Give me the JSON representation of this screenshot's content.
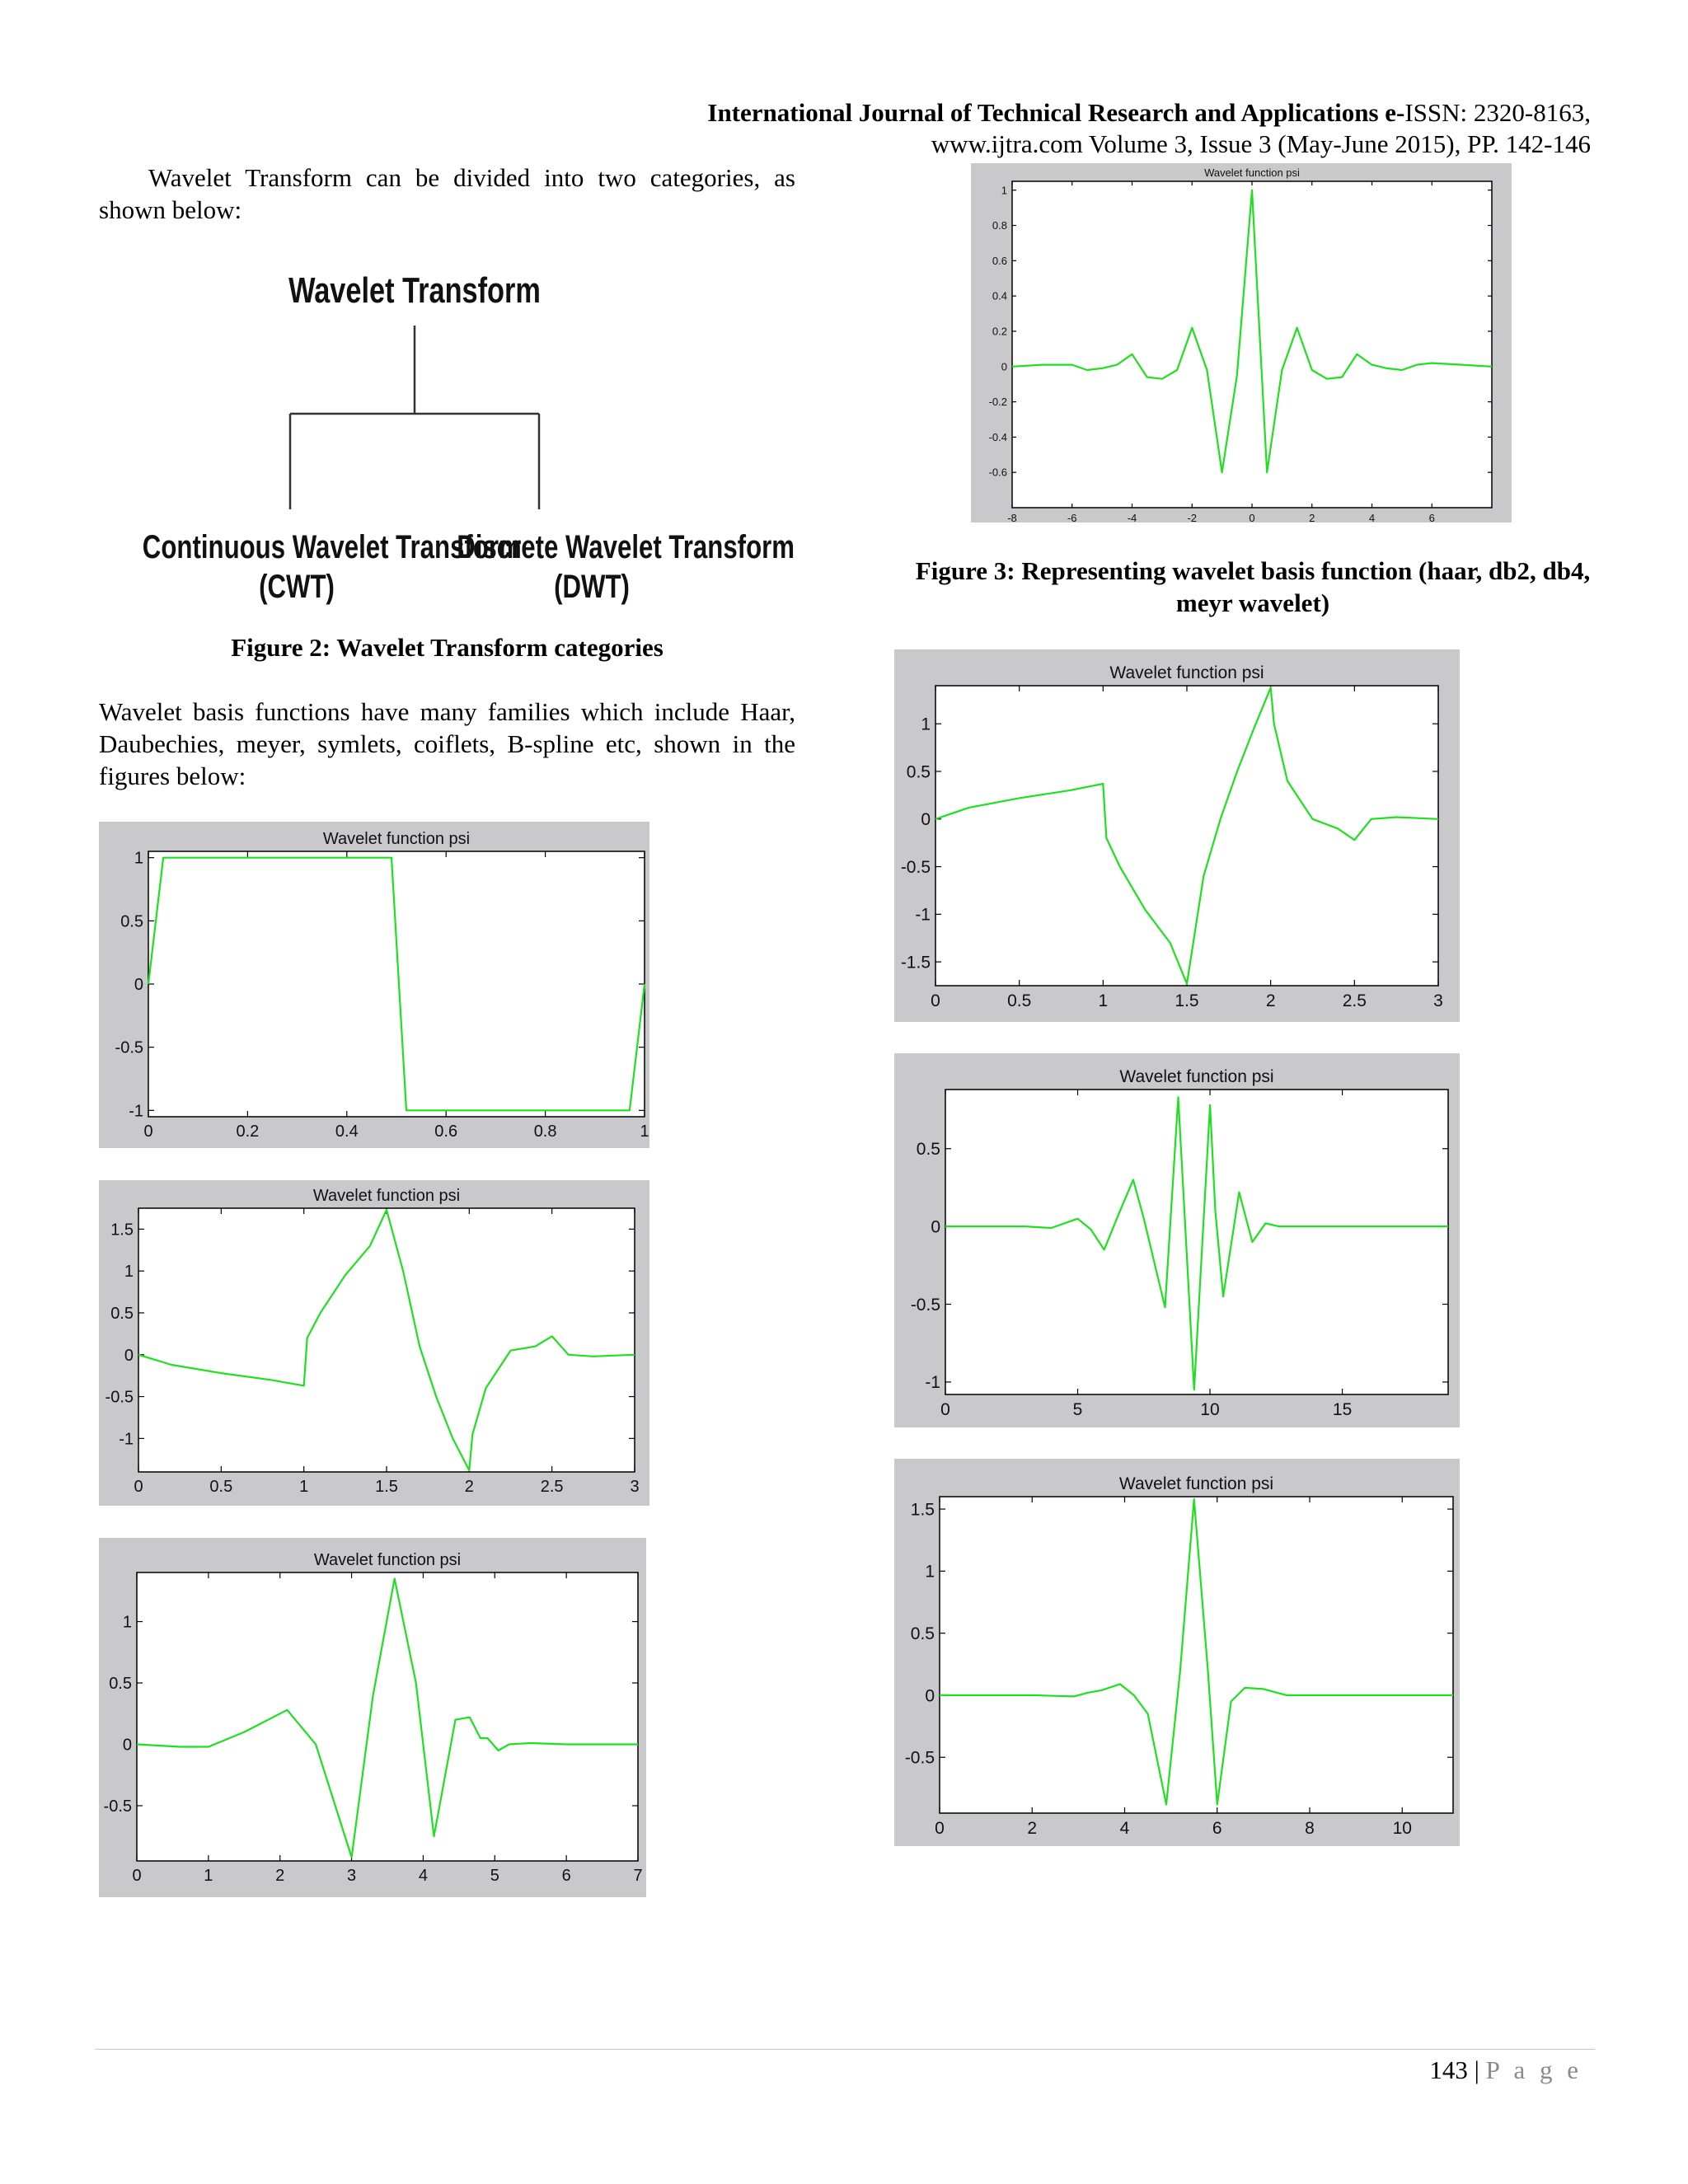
{
  "header": {
    "journal_bold": "International Journal of Technical Research and Applications e-",
    "issn": "ISSN: 2320-8163,",
    "line2": "www.ijtra.com Volume 3, Issue 3 (May-June 2015), PP. 142-146"
  },
  "para1": "Wavelet Transform can be divided into two categories, as shown below:",
  "diagram": {
    "root": "Wavelet Transform",
    "left_line1": "Continuous Wavelet Transform",
    "left_line2": "(CWT)",
    "right_line1": "Discrete Wavelet Transform",
    "right_line2": "(DWT)"
  },
  "fig2_caption": "Figure 2: Wavelet Transform categories",
  "para2": "Wavelet basis functions have many families which include Haar, Daubechies, meyer, symlets, coiflets, B-spline etc, shown in the figures below:",
  "fig3_caption": "Figure 3: Representing wavelet basis function (haar, db2, db4, meyr wavelet)",
  "footer": {
    "page_number": "143",
    "separator": " | ",
    "page_word": "P a g e"
  },
  "colors": {
    "plot_line": "#1fe01f",
    "panel_bg": "#c9c9cc",
    "axes_bg": "#ffffff"
  },
  "chart_data": [
    {
      "id": "meyer_small",
      "type": "line",
      "title": "Wavelet function psi",
      "xlim": [
        -8,
        8
      ],
      "ylim": [
        -0.8,
        1.05
      ],
      "xticks": [
        "-8",
        "-6",
        "-4",
        "-2",
        "0",
        "2",
        "4",
        "6"
      ],
      "xtick_vals": [
        -8,
        -6,
        -4,
        -2,
        0,
        2,
        4,
        6
      ],
      "yticks": [
        "1",
        "0.8",
        "0.6",
        "0.4",
        "0.2",
        "0",
        "-0.2",
        "-0.4",
        "-0.6"
      ],
      "ytick_vals": [
        1,
        0.8,
        0.6,
        0.4,
        0.2,
        0,
        -0.2,
        -0.4,
        -0.6
      ],
      "series": [
        {
          "x": [
            -8,
            -7,
            -6,
            -5.5,
            -5,
            -4.5,
            -4,
            -3.5,
            -3,
            -2.5,
            -2,
            -1.5,
            -1,
            -0.5,
            0,
            0.5,
            1,
            1.5,
            2,
            2.5,
            3,
            3.5,
            4,
            4.5,
            5,
            5.5,
            6,
            7,
            8
          ],
          "y": [
            0,
            0.01,
            0.01,
            -0.02,
            -0.01,
            0.01,
            0.07,
            -0.06,
            -0.07,
            -0.02,
            0.22,
            -0.02,
            -0.6,
            -0.05,
            1.0,
            -0.6,
            -0.02,
            0.22,
            -0.02,
            -0.07,
            -0.06,
            0.07,
            0.01,
            -0.01,
            -0.02,
            0.01,
            0.02,
            0.01,
            0
          ]
        }
      ]
    },
    {
      "id": "haar",
      "type": "line",
      "title": "Wavelet function psi",
      "xlim": [
        0,
        1
      ],
      "ylim": [
        -1.05,
        1.05
      ],
      "xticks": [
        "0",
        "0.2",
        "0.4",
        "0.6",
        "0.8",
        "1"
      ],
      "xtick_vals": [
        0,
        0.2,
        0.4,
        0.6,
        0.8,
        1
      ],
      "yticks": [
        "1",
        "0.5",
        "0",
        "-0.5",
        "-1"
      ],
      "ytick_vals": [
        1,
        0.5,
        0,
        -0.5,
        -1
      ],
      "series": [
        {
          "x": [
            0,
            0.03,
            0.49,
            0.52,
            0.97,
            1.0
          ],
          "y": [
            0,
            1,
            1,
            -1,
            -1,
            0
          ]
        }
      ]
    },
    {
      "id": "db2_left",
      "type": "line",
      "title": "Wavelet function psi",
      "xlim": [
        0,
        3
      ],
      "ylim": [
        -1.4,
        1.75
      ],
      "xticks": [
        "0",
        "0.5",
        "1",
        "1.5",
        "2",
        "2.5",
        "3"
      ],
      "xtick_vals": [
        0,
        0.5,
        1,
        1.5,
        2,
        2.5,
        3
      ],
      "yticks": [
        "1.5",
        "1",
        "0.5",
        "0",
        "-0.5",
        "-1"
      ],
      "ytick_vals": [
        1.5,
        1,
        0.5,
        0,
        -0.5,
        -1
      ],
      "series": [
        {
          "x": [
            0,
            0.2,
            0.5,
            0.8,
            1.0,
            1.02,
            1.1,
            1.25,
            1.4,
            1.5,
            1.6,
            1.7,
            1.8,
            1.9,
            2.0,
            2.02,
            2.1,
            2.25,
            2.4,
            2.5,
            2.6,
            2.75,
            3
          ],
          "y": [
            0,
            -0.12,
            -0.22,
            -0.3,
            -0.37,
            0.2,
            0.5,
            0.95,
            1.3,
            1.73,
            1.0,
            0.1,
            -0.5,
            -1.0,
            -1.38,
            -0.95,
            -0.4,
            0.05,
            0.1,
            0.22,
            0.0,
            -0.02,
            0
          ]
        }
      ]
    },
    {
      "id": "db4_left",
      "type": "line",
      "title": "Wavelet function psi",
      "xlim": [
        0,
        7
      ],
      "ylim": [
        -0.95,
        1.4
      ],
      "xticks": [
        "0",
        "1",
        "2",
        "3",
        "4",
        "5",
        "6",
        "7"
      ],
      "xtick_vals": [
        0,
        1,
        2,
        3,
        4,
        5,
        6,
        7
      ],
      "yticks": [
        "1",
        "0.5",
        "0",
        "-0.5"
      ],
      "ytick_vals": [
        1,
        0.5,
        0,
        -0.5
      ],
      "series": [
        {
          "x": [
            0,
            0.6,
            1.0,
            1.5,
            2.1,
            2.5,
            3.0,
            3.3,
            3.6,
            3.9,
            4.15,
            4.45,
            4.65,
            4.8,
            4.9,
            5.05,
            5.2,
            5.5,
            6,
            7
          ],
          "y": [
            0,
            -0.02,
            -0.02,
            0.1,
            0.28,
            0.0,
            -0.92,
            0.4,
            1.35,
            0.5,
            -0.75,
            0.2,
            0.22,
            0.05,
            0.05,
            -0.05,
            0.0,
            0.01,
            0,
            0
          ]
        }
      ]
    },
    {
      "id": "db2_right",
      "type": "line",
      "title": "Wavelet function psi",
      "xlim": [
        0,
        3
      ],
      "ylim": [
        -1.75,
        1.4
      ],
      "xticks": [
        "0",
        "0.5",
        "1",
        "1.5",
        "2",
        "2.5",
        "3"
      ],
      "xtick_vals": [
        0,
        0.5,
        1,
        1.5,
        2,
        2.5,
        3
      ],
      "yticks": [
        "1",
        "0.5",
        "0",
        "-0.5",
        "-1",
        "-1.5"
      ],
      "ytick_vals": [
        1,
        0.5,
        0,
        -0.5,
        -1,
        -1.5
      ],
      "series": [
        {
          "x": [
            0,
            0.2,
            0.5,
            0.8,
            1.0,
            1.02,
            1.1,
            1.25,
            1.4,
            1.5,
            1.6,
            1.7,
            1.8,
            1.9,
            2.0,
            2.02,
            2.1,
            2.25,
            2.4,
            2.5,
            2.6,
            2.75,
            3
          ],
          "y": [
            0,
            0.12,
            0.22,
            0.3,
            0.37,
            -0.2,
            -0.5,
            -0.95,
            -1.3,
            -1.73,
            -0.6,
            0.0,
            0.5,
            0.95,
            1.38,
            1.0,
            0.4,
            0.0,
            -0.1,
            -0.22,
            0.0,
            0.02,
            0
          ]
        }
      ]
    },
    {
      "id": "db4_right",
      "type": "line",
      "title": "Wavelet function psi",
      "xlim": [
        0,
        19
      ],
      "ylim": [
        -1.08,
        0.88
      ],
      "xticks": [
        "0",
        "5",
        "10",
        "15"
      ],
      "xtick_vals": [
        0,
        5,
        10,
        15
      ],
      "yticks": [
        "0.5",
        "0",
        "-0.5",
        "-1"
      ],
      "ytick_vals": [
        0.5,
        0,
        -0.5,
        -1
      ],
      "series": [
        {
          "x": [
            0,
            3,
            4,
            5,
            5.5,
            6,
            6.6,
            7.1,
            7.5,
            8.3,
            8.8,
            9.4,
            10.0,
            10.2,
            10.5,
            11.1,
            11.6,
            12.1,
            12.6,
            13,
            14,
            19
          ],
          "y": [
            0,
            0,
            -0.01,
            0.05,
            -0.02,
            -0.15,
            0.1,
            0.3,
            0.05,
            -0.52,
            0.83,
            -1.05,
            0.78,
            0.1,
            -0.45,
            0.22,
            -0.1,
            0.02,
            0,
            0,
            0,
            0
          ]
        }
      ]
    },
    {
      "id": "meyer_right",
      "type": "line",
      "title": "Wavelet function psi",
      "xlim": [
        0,
        11.1
      ],
      "ylim": [
        -0.95,
        1.6
      ],
      "xticks": [
        "0",
        "2",
        "4",
        "6",
        "8",
        "10"
      ],
      "xtick_vals": [
        0,
        2,
        4,
        6,
        8,
        10
      ],
      "yticks": [
        "1.5",
        "1",
        "0.5",
        "0",
        "-0.5"
      ],
      "ytick_vals": [
        1.5,
        1,
        0.5,
        0,
        -0.5
      ],
      "series": [
        {
          "x": [
            0,
            1,
            2,
            2.9,
            3.2,
            3.5,
            3.9,
            4.2,
            4.5,
            4.9,
            5.2,
            5.5,
            5.8,
            6.0,
            6.3,
            6.6,
            7.0,
            7.5,
            8,
            10,
            11.1
          ],
          "y": [
            0,
            0,
            0,
            -0.01,
            0.02,
            0.04,
            0.09,
            0.0,
            -0.15,
            -0.88,
            0.2,
            1.58,
            0.2,
            -0.88,
            -0.05,
            0.06,
            0.05,
            0.0,
            0,
            0,
            0
          ]
        }
      ]
    }
  ]
}
